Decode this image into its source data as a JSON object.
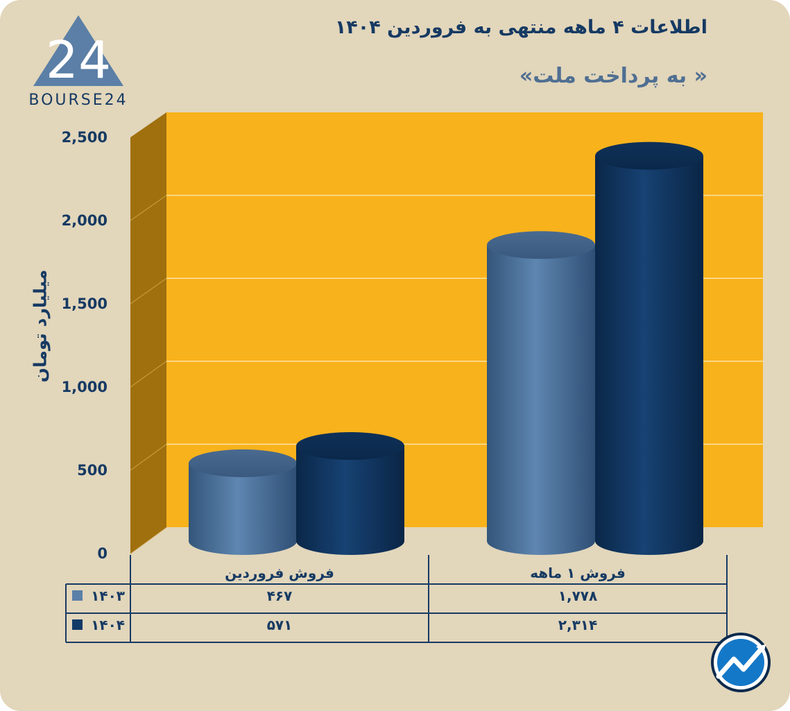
{
  "header": {
    "title": "اطلاعات ۴ ماهه منتهی به فروردین ۱۴۰۴",
    "subtitle": "« به پرداخت ملت»",
    "logo_text": "BOURSE24",
    "logo_numeral": "24"
  },
  "colors": {
    "background": "#e2d6bb",
    "plot_back": "#f8b21c",
    "plot_side": "#a0700e",
    "series_1403": "#5b80a8",
    "series_1404": "#123a66",
    "text": "#163a63"
  },
  "chart_data": {
    "type": "bar",
    "title": "اطلاعات ۴ ماهه منتهی به فروردین ۱۴۰۴",
    "subtitle": "« به پرداخت ملت»",
    "ylabel": "میلیارد تومان",
    "xlabel": "",
    "ylim": [
      0,
      2500
    ],
    "y_ticks": [
      0,
      500,
      1000,
      1500,
      2000,
      2500
    ],
    "y_tick_labels": [
      "0",
      "500",
      "1,000",
      "1,500",
      "2,000",
      "2,500"
    ],
    "categories": [
      "فروش فروردین",
      "فروش ۱ ماهه"
    ],
    "series": [
      {
        "name": "۱۴۰۳",
        "values": [
          467,
          1778
        ],
        "value_labels": [
          "۴۶۷",
          "۱,۷۷۸"
        ],
        "color": "#5b80a8"
      },
      {
        "name": "۱۴۰۴",
        "values": [
          571,
          2314
        ],
        "value_labels": [
          "۵۷۱",
          "۲,۳۱۴"
        ],
        "color": "#123a66"
      }
    ],
    "grid": true,
    "legend": "data-table"
  },
  "icons": {
    "logo": "bourse24-triangle-logo",
    "badge": "trend-arrow-badge-icon"
  }
}
